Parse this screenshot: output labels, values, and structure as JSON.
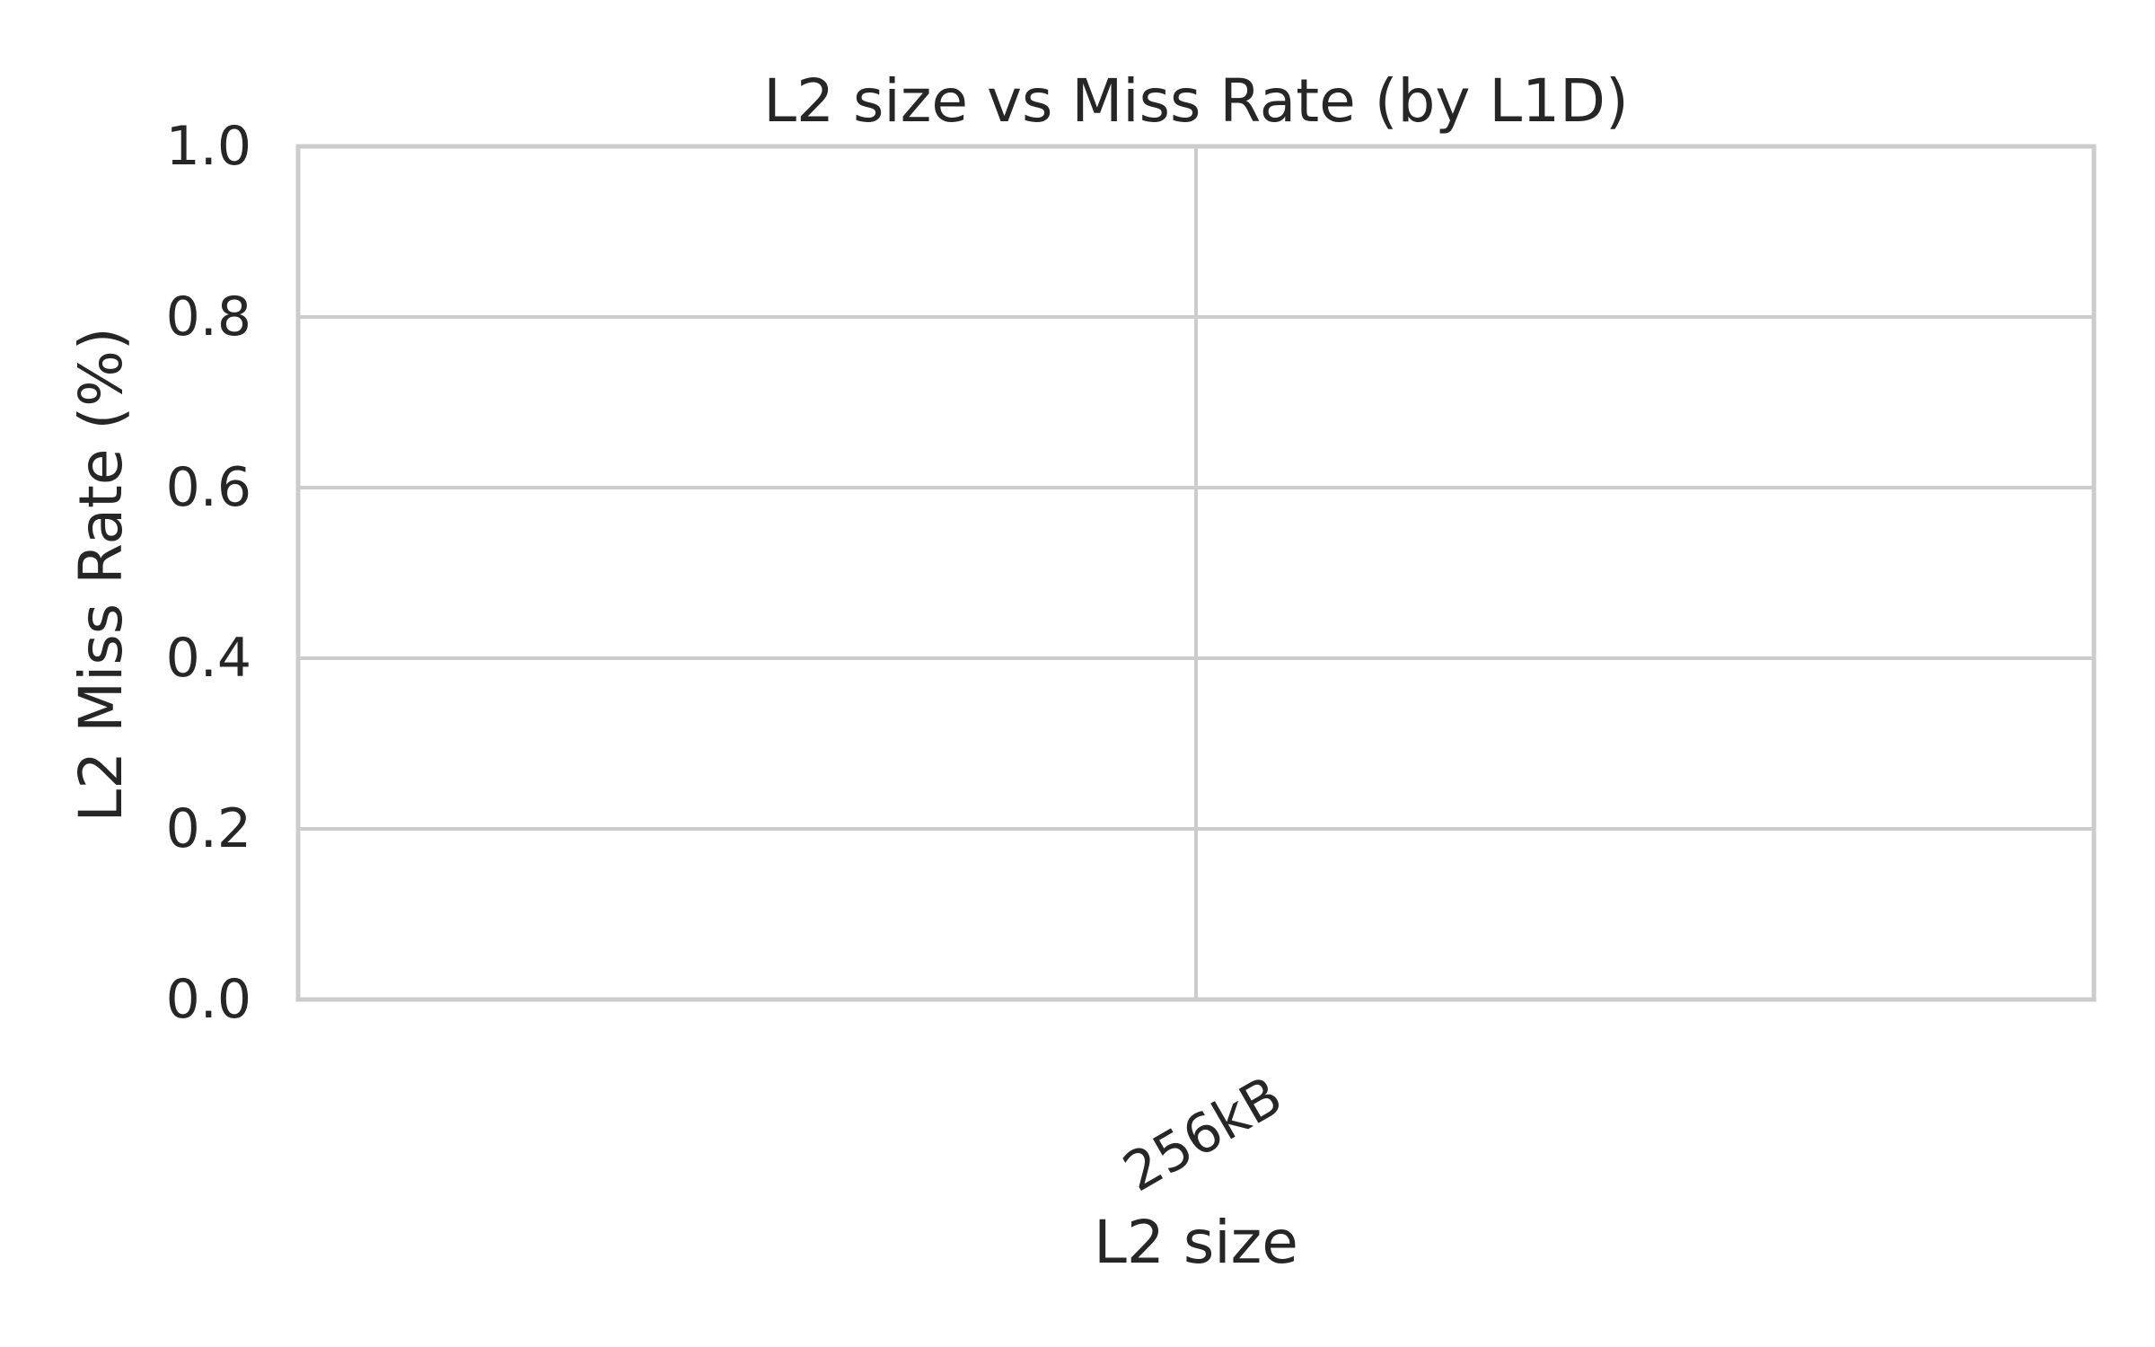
{
  "chart_data": {
    "type": "bar",
    "title": "L2 size vs Miss Rate (by L1D)",
    "xlabel": "L2 size",
    "ylabel": "L2 Miss Rate (%)",
    "categories": [
      "256kB"
    ],
    "series": [],
    "ylim": [
      0.0,
      1.0
    ],
    "yticks": [
      "0.0",
      "0.2",
      "0.4",
      "0.6",
      "0.8",
      "1.0"
    ],
    "grid": true,
    "legend": null
  }
}
